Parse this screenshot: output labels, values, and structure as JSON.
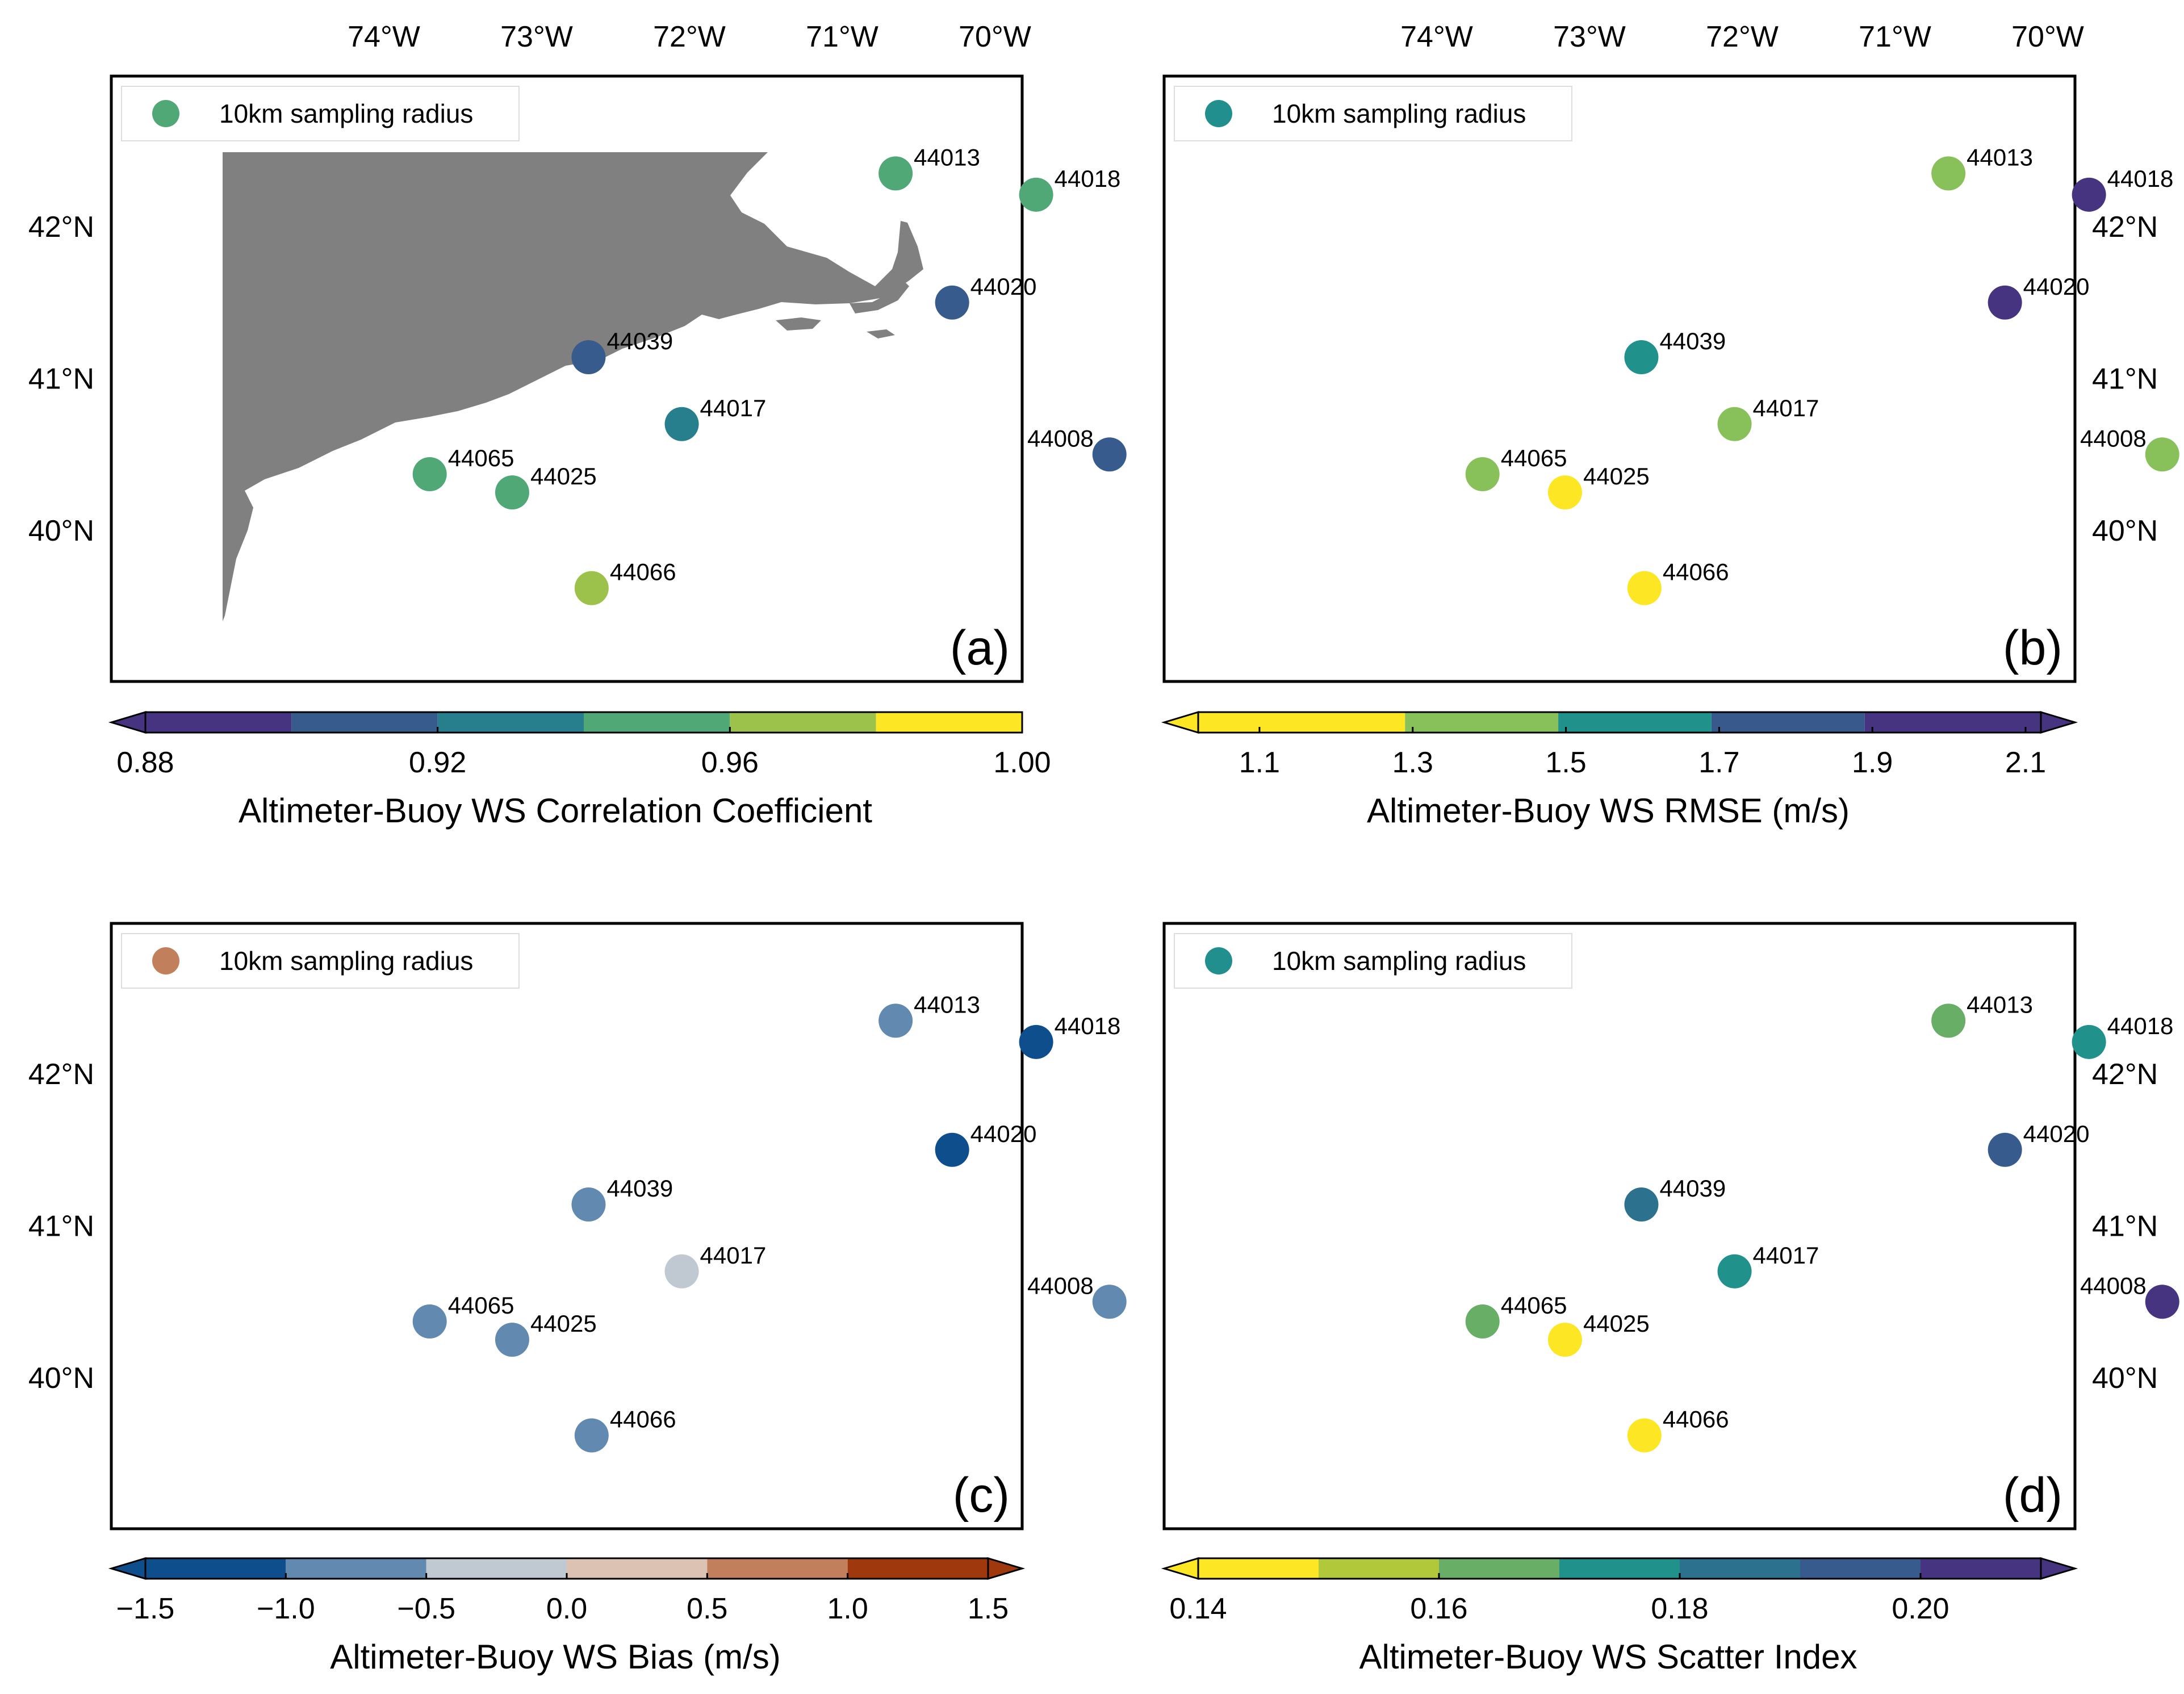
{
  "chart_data": [
    {
      "type": "map",
      "panel_label": "(a)",
      "legend_label": "10km sampling radius",
      "legend_color": "#4fa876",
      "colorbar": {
        "label": "Altimeter-Buoy WS Correlation Coefficient",
        "extend": "min",
        "tick_labels": [
          "0.88",
          "0.92",
          "0.96",
          "1.00"
        ],
        "tick_values": [
          0.88,
          0.92,
          0.96,
          1.0
        ],
        "vmin": 0.88,
        "vmax": 1.0,
        "bins": [
          0.88,
          0.9,
          0.92,
          0.94,
          0.96,
          0.98,
          1.0
        ],
        "colors": [
          "#463480",
          "#365b8c",
          "#277f8e",
          "#4fa876",
          "#9dc24b",
          "#fde725"
        ]
      },
      "stations": [
        {
          "id": "44013",
          "lon": -70.65,
          "lat": 42.35,
          "value_color": "#4fa876"
        },
        {
          "id": "44018",
          "lon": -69.73,
          "lat": 42.21,
          "value_color": "#4fa876"
        },
        {
          "id": "44020",
          "lon": -70.28,
          "lat": 41.5,
          "value_color": "#365b8c"
        },
        {
          "id": "44039",
          "lon": -72.66,
          "lat": 41.14,
          "value_color": "#365b8c"
        },
        {
          "id": "44017",
          "lon": -72.05,
          "lat": 40.7,
          "value_color": "#277f8e"
        },
        {
          "id": "44008",
          "lon": -69.25,
          "lat": 40.5,
          "value_color": "#365b8c",
          "label_side": "left"
        },
        {
          "id": "44065",
          "lon": -73.7,
          "lat": 40.37,
          "value_color": "#4fa876"
        },
        {
          "id": "44025",
          "lon": -73.16,
          "lat": 40.25,
          "value_color": "#4fa876"
        },
        {
          "id": "44066",
          "lon": -72.64,
          "lat": 39.62,
          "value_color": "#9dc24b"
        }
      ]
    },
    {
      "type": "map",
      "panel_label": "(b)",
      "legend_label": "10km sampling radius",
      "legend_color": "#218f8d",
      "colorbar": {
        "label": "Altimeter-Buoy WS RMSE (m/s)",
        "extend": "both",
        "tick_labels": [
          "1.1",
          "1.3",
          "1.5",
          "1.7",
          "1.9",
          "2.1"
        ],
        "tick_values": [
          1.1,
          1.3,
          1.5,
          1.7,
          1.9,
          2.1
        ],
        "vmin": 1.02,
        "vmax": 2.12,
        "bins": [
          1.02,
          1.29,
          1.49,
          1.69,
          1.89,
          2.12
        ],
        "colors": [
          "#fde725",
          "#88c05a",
          "#21918c",
          "#37598c",
          "#463480"
        ]
      },
      "stations": [
        {
          "id": "44013",
          "lon": -70.65,
          "lat": 42.35,
          "value_color": "#88c05a"
        },
        {
          "id": "44018",
          "lon": -69.73,
          "lat": 42.21,
          "value_color": "#463480"
        },
        {
          "id": "44020",
          "lon": -70.28,
          "lat": 41.5,
          "value_color": "#463480"
        },
        {
          "id": "44039",
          "lon": -72.66,
          "lat": 41.14,
          "value_color": "#21918c"
        },
        {
          "id": "44017",
          "lon": -72.05,
          "lat": 40.7,
          "value_color": "#88c05a"
        },
        {
          "id": "44008",
          "lon": -69.25,
          "lat": 40.5,
          "value_color": "#88c05a",
          "label_side": "left"
        },
        {
          "id": "44065",
          "lon": -73.7,
          "lat": 40.37,
          "value_color": "#88c05a"
        },
        {
          "id": "44025",
          "lon": -73.16,
          "lat": 40.25,
          "value_color": "#fde725"
        },
        {
          "id": "44066",
          "lon": -72.64,
          "lat": 39.62,
          "value_color": "#fde725"
        }
      ]
    },
    {
      "type": "map",
      "panel_label": "(c)",
      "legend_label": "10km sampling radius",
      "legend_color": "#c27f5b",
      "colorbar": {
        "label": "Altimeter-Buoy WS Bias (m/s)",
        "extend": "both",
        "tick_labels": [
          "−1.5",
          "−1.0",
          "−0.5",
          "0.0",
          "0.5",
          "1.0",
          "1.5"
        ],
        "tick_values": [
          -1.5,
          -1.0,
          -0.5,
          0.0,
          0.5,
          1.0,
          1.5
        ],
        "vmin": -1.5,
        "vmax": 1.5,
        "bins": [
          -1.5,
          -1.0,
          -0.5,
          0.0,
          0.5,
          1.0,
          1.5
        ],
        "colors": [
          "#0e4e8c",
          "#6289b0",
          "#c0c9d1",
          "#dcc2b2",
          "#c27f5b",
          "#a0380d"
        ]
      },
      "stations": [
        {
          "id": "44013",
          "lon": -70.65,
          "lat": 42.35,
          "value_color": "#6289b0"
        },
        {
          "id": "44018",
          "lon": -69.73,
          "lat": 42.21,
          "value_color": "#0e4e8c"
        },
        {
          "id": "44020",
          "lon": -70.28,
          "lat": 41.5,
          "value_color": "#0e4e8c"
        },
        {
          "id": "44039",
          "lon": -72.66,
          "lat": 41.14,
          "value_color": "#6289b0"
        },
        {
          "id": "44017",
          "lon": -72.05,
          "lat": 40.7,
          "value_color": "#c0c9d1"
        },
        {
          "id": "44008",
          "lon": -69.25,
          "lat": 40.5,
          "value_color": "#6289b0",
          "label_side": "left"
        },
        {
          "id": "44065",
          "lon": -73.7,
          "lat": 40.37,
          "value_color": "#6289b0"
        },
        {
          "id": "44025",
          "lon": -73.16,
          "lat": 40.25,
          "value_color": "#6289b0"
        },
        {
          "id": "44066",
          "lon": -72.64,
          "lat": 39.62,
          "value_color": "#6289b0"
        }
      ]
    },
    {
      "type": "map",
      "panel_label": "(d)",
      "legend_label": "10km sampling radius",
      "legend_color": "#218f8d",
      "colorbar": {
        "label": "Altimeter-Buoy WS Scatter Index",
        "extend": "both",
        "tick_labels": [
          "0.14",
          "0.16",
          "0.18",
          "0.20"
        ],
        "tick_values": [
          0.14,
          0.16,
          0.18,
          0.2
        ],
        "vmin": 0.14,
        "vmax": 0.21,
        "bins": [
          0.14,
          0.15,
          0.16,
          0.17,
          0.18,
          0.19,
          0.2,
          0.21
        ],
        "colors": [
          "#fde725",
          "#b0c83a",
          "#69ae67",
          "#21918c",
          "#2c728e",
          "#365b8c",
          "#463480"
        ]
      },
      "stations": [
        {
          "id": "44013",
          "lon": -70.65,
          "lat": 42.35,
          "value_color": "#69ae67"
        },
        {
          "id": "44018",
          "lon": -69.73,
          "lat": 42.21,
          "value_color": "#21918c"
        },
        {
          "id": "44020",
          "lon": -70.28,
          "lat": 41.5,
          "value_color": "#365b8c"
        },
        {
          "id": "44039",
          "lon": -72.66,
          "lat": 41.14,
          "value_color": "#2c728e"
        },
        {
          "id": "44017",
          "lon": -72.05,
          "lat": 40.7,
          "value_color": "#21918c"
        },
        {
          "id": "44008",
          "lon": -69.25,
          "lat": 40.5,
          "value_color": "#463480",
          "label_side": "left"
        },
        {
          "id": "44065",
          "lon": -73.7,
          "lat": 40.37,
          "value_color": "#69ae67"
        },
        {
          "id": "44025",
          "lon": -73.16,
          "lat": 40.25,
          "value_color": "#fde725"
        },
        {
          "id": "44066",
          "lon": -72.64,
          "lat": 39.62,
          "value_color": "#fde725"
        }
      ]
    }
  ],
  "map_axes": {
    "lon_ticks": [
      -74,
      -73,
      -72,
      -71,
      -70
    ],
    "lon_tick_labels": [
      "74°W",
      "73°W",
      "72°W",
      "71°W",
      "70°W"
    ],
    "lat_ticks": [
      40,
      41,
      42
    ],
    "lat_tick_labels": [
      "40°N",
      "41°N",
      "42°N"
    ],
    "lon_range": [
      -75.0,
      -69.0
    ],
    "lat_range": [
      39.0,
      43.0
    ],
    "land_color": "#808080",
    "water_color": "#ffffff"
  }
}
